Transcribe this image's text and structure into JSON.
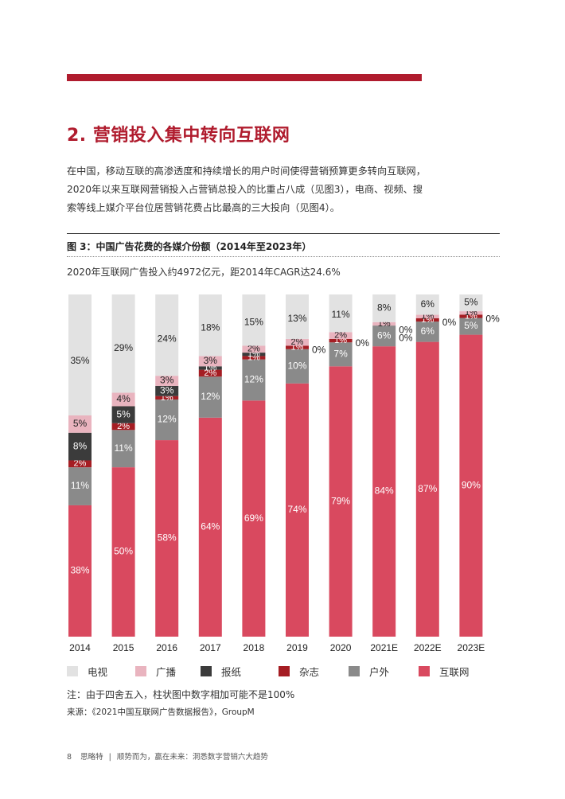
{
  "page": {
    "top_bar_color": "#b01c2e",
    "section_title": "2. 营销投入集中转向互联网",
    "intro_lines": [
      "在中国，移动互联的高渗透度和持续增长的用户时间使得营销预算更多转向互联网，",
      "2020年以来互联网营销投入占营销总投入的比重占八成（见图3），电商、视频、搜",
      "索等线上媒介平台位居营销花费占比最高的三大投向（见图4）。"
    ],
    "figure_title": "图 3：中国广告花费的各媒介份额（2014年至2023年）",
    "figure_subtitle": "2020年互联网广告投入约4972亿元，距2014年CAGR达24.6%",
    "note": "注：由于四舍五入，柱状图中数字相加可能不是100%",
    "source": "来源：《2021中国互联网广告数据报告》，GroupM",
    "footer_page": "8",
    "footer_brand": "思略特",
    "footer_sep": "|",
    "footer_text": "顺势而为，赢在未来：洞悉数字营销六大趋势"
  },
  "chart_data": {
    "type": "bar",
    "stacked": true,
    "percent": true,
    "categories": [
      "2014",
      "2015",
      "2016",
      "2017",
      "2018",
      "2019",
      "2020",
      "2021E",
      "2022E",
      "2023E"
    ],
    "series": [
      {
        "name": "互联网",
        "color": "#d9495f",
        "values": [
          38,
          50,
          58,
          64,
          69,
          74,
          79,
          84,
          87,
          90
        ]
      },
      {
        "name": "户外",
        "color": "#8a8a8a",
        "values": [
          11,
          11,
          12,
          12,
          12,
          10,
          7,
          6,
          6,
          5
        ]
      },
      {
        "name": "杂志",
        "color": "#a51d23",
        "values": [
          2,
          2,
          1,
          2,
          1,
          1,
          1,
          0,
          1,
          1
        ]
      },
      {
        "name": "报纸",
        "color": "#3b3b3b",
        "values": [
          8,
          5,
          3,
          1,
          1,
          0,
          0,
          0,
          0,
          0
        ]
      },
      {
        "name": "广播",
        "color": "#e9b4bf",
        "values": [
          5,
          4,
          3,
          3,
          2,
          2,
          2,
          1,
          1,
          1
        ]
      },
      {
        "name": "电视",
        "color": "#e2e2e2",
        "values": [
          35,
          29,
          24,
          18,
          15,
          13,
          11,
          8,
          6,
          5
        ]
      }
    ],
    "legend_order": [
      "电视",
      "广播",
      "报纸",
      "杂志",
      "户外",
      "互联网"
    ],
    "legend_position": "bottom",
    "value_labels": true,
    "grid": false
  }
}
